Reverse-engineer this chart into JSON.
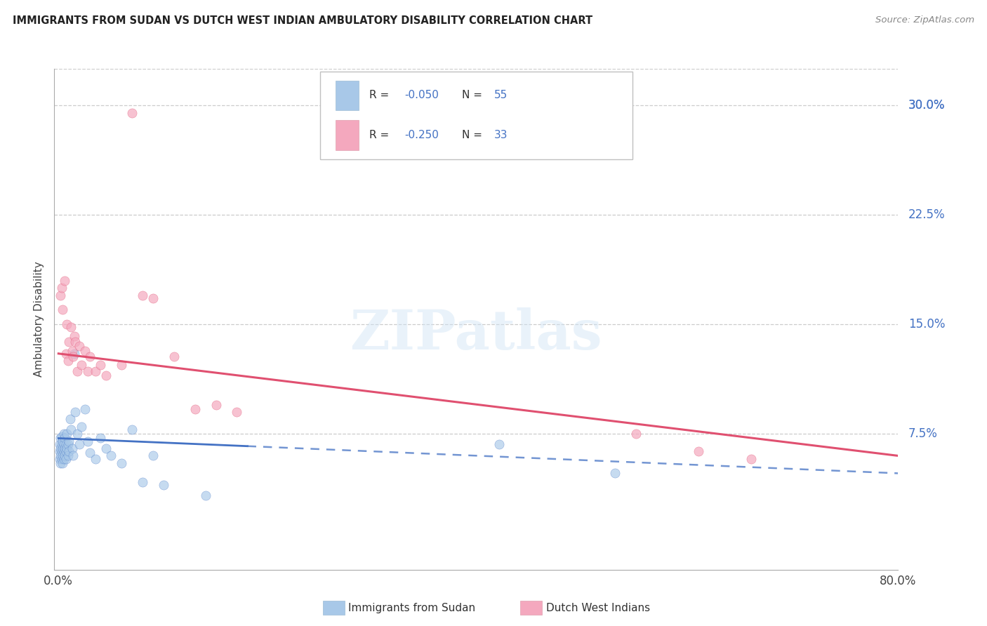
{
  "title": "IMMIGRANTS FROM SUDAN VS DUTCH WEST INDIAN AMBULATORY DISABILITY CORRELATION CHART",
  "source": "Source: ZipAtlas.com",
  "ylabel": "Ambulatory Disability",
  "xlim": [
    -0.004,
    0.8
  ],
  "ylim": [
    -0.018,
    0.325
  ],
  "yticks": [
    0.075,
    0.15,
    0.225,
    0.3
  ],
  "ytick_labels": [
    "7.5%",
    "15.0%",
    "22.5%",
    "30.0%"
  ],
  "xtick_vals": [
    0.0,
    0.1,
    0.2,
    0.3,
    0.4,
    0.5,
    0.6,
    0.7,
    0.8
  ],
  "series1_label": "Immigrants from Sudan",
  "series1_color": "#A8C8E8",
  "series2_label": "Dutch West Indians",
  "series2_color": "#F4A8BE",
  "series1_R": "-0.050",
  "series1_N": "55",
  "series2_R": "-0.250",
  "series2_N": "33",
  "trend1_color": "#4472C4",
  "trend2_color": "#E05070",
  "legend_text_color": "#4472C4",
  "legend_r_color": "#4472C4",
  "legend_n_color": "#4472C4",
  "right_label_color": "#4472C4",
  "watermark_color": "#D0E4F4",
  "bg_color": "#ffffff",
  "grid_color": "#cccccc",
  "title_color": "#222222",
  "sudan_x": [
    0.001,
    0.001,
    0.001,
    0.002,
    0.002,
    0.002,
    0.002,
    0.003,
    0.003,
    0.003,
    0.003,
    0.004,
    0.004,
    0.004,
    0.004,
    0.005,
    0.005,
    0.005,
    0.005,
    0.006,
    0.006,
    0.006,
    0.007,
    0.007,
    0.007,
    0.008,
    0.008,
    0.009,
    0.009,
    0.01,
    0.01,
    0.011,
    0.012,
    0.013,
    0.014,
    0.015,
    0.016,
    0.018,
    0.02,
    0.022,
    0.025,
    0.028,
    0.03,
    0.035,
    0.04,
    0.045,
    0.05,
    0.06,
    0.07,
    0.08,
    0.09,
    0.1,
    0.14,
    0.42,
    0.53
  ],
  "sudan_y": [
    0.068,
    0.063,
    0.058,
    0.072,
    0.065,
    0.06,
    0.055,
    0.068,
    0.063,
    0.058,
    0.073,
    0.065,
    0.06,
    0.055,
    0.07,
    0.068,
    0.063,
    0.058,
    0.075,
    0.065,
    0.06,
    0.072,
    0.063,
    0.058,
    0.068,
    0.075,
    0.065,
    0.068,
    0.06,
    0.063,
    0.07,
    0.085,
    0.078,
    0.065,
    0.06,
    0.13,
    0.09,
    0.075,
    0.068,
    0.08,
    0.092,
    0.07,
    0.062,
    0.058,
    0.072,
    0.065,
    0.06,
    0.055,
    0.078,
    0.042,
    0.06,
    0.04,
    0.033,
    0.068,
    0.048
  ],
  "dutch_x": [
    0.002,
    0.003,
    0.004,
    0.006,
    0.007,
    0.008,
    0.009,
    0.01,
    0.012,
    0.013,
    0.014,
    0.015,
    0.016,
    0.018,
    0.02,
    0.022,
    0.025,
    0.028,
    0.03,
    0.035,
    0.04,
    0.045,
    0.06,
    0.07,
    0.08,
    0.09,
    0.11,
    0.13,
    0.15,
    0.17,
    0.55,
    0.61,
    0.66
  ],
  "dutch_y": [
    0.17,
    0.175,
    0.16,
    0.18,
    0.13,
    0.15,
    0.125,
    0.138,
    0.148,
    0.132,
    0.128,
    0.142,
    0.138,
    0.118,
    0.135,
    0.122,
    0.132,
    0.118,
    0.128,
    0.118,
    0.122,
    0.115,
    0.122,
    0.295,
    0.17,
    0.168,
    0.128,
    0.092,
    0.095,
    0.09,
    0.075,
    0.063,
    0.058
  ],
  "trend1_x0": 0.0,
  "trend1_y0": 0.072,
  "trend1_x1": 0.8,
  "trend1_y1": 0.048,
  "trend1_solid_end": 0.18,
  "trend2_x0": 0.0,
  "trend2_y0": 0.13,
  "trend2_x1": 0.8,
  "trend2_y1": 0.06
}
